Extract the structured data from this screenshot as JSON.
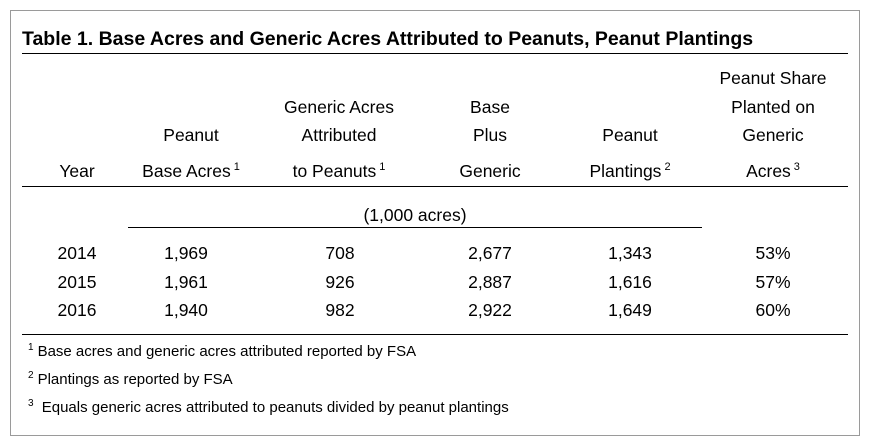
{
  "title": "Table 1.  Base Acres and Generic Acres Attributed to Peanuts, Peanut Plantings",
  "columns": {
    "year": {
      "line1": "Year"
    },
    "base": {
      "line1": "Peanut",
      "line2": "Base Acres",
      "note": "1"
    },
    "generic": {
      "line1": "Generic Acres",
      "line2": "Attributed",
      "line3": "to Peanuts",
      "note": "1"
    },
    "combined": {
      "line1": "Base",
      "line2": "Plus",
      "line3": "Generic"
    },
    "plantings": {
      "line1": "Peanut",
      "line2": "Plantings",
      "note": "2"
    },
    "share": {
      "line1": "Peanut Share",
      "line2": "Planted on",
      "line3": "Generic",
      "line4": "Acres",
      "note": "3"
    }
  },
  "units": "(1,000 acres)",
  "rows": [
    {
      "year": "2014",
      "base": "1,969",
      "generic": "708",
      "combined": "2,677",
      "plantings": "1,343",
      "share": "53%"
    },
    {
      "year": "2015",
      "base": "1,961",
      "generic": "926",
      "combined": "2,887",
      "plantings": "1,616",
      "share": "57%"
    },
    {
      "year": "2016",
      "base": "1,940",
      "generic": "982",
      "combined": "2,922",
      "plantings": "1,649",
      "share": "60%"
    }
  ],
  "footnotes": [
    {
      "mark": "1",
      "text": "Base acres and generic acres attributed reported by FSA"
    },
    {
      "mark": "2",
      "text": "Plantings as reported by FSA"
    },
    {
      "mark": "3",
      "text": " Equals generic acres attributed to peanuts divided by peanut plantings"
    }
  ]
}
